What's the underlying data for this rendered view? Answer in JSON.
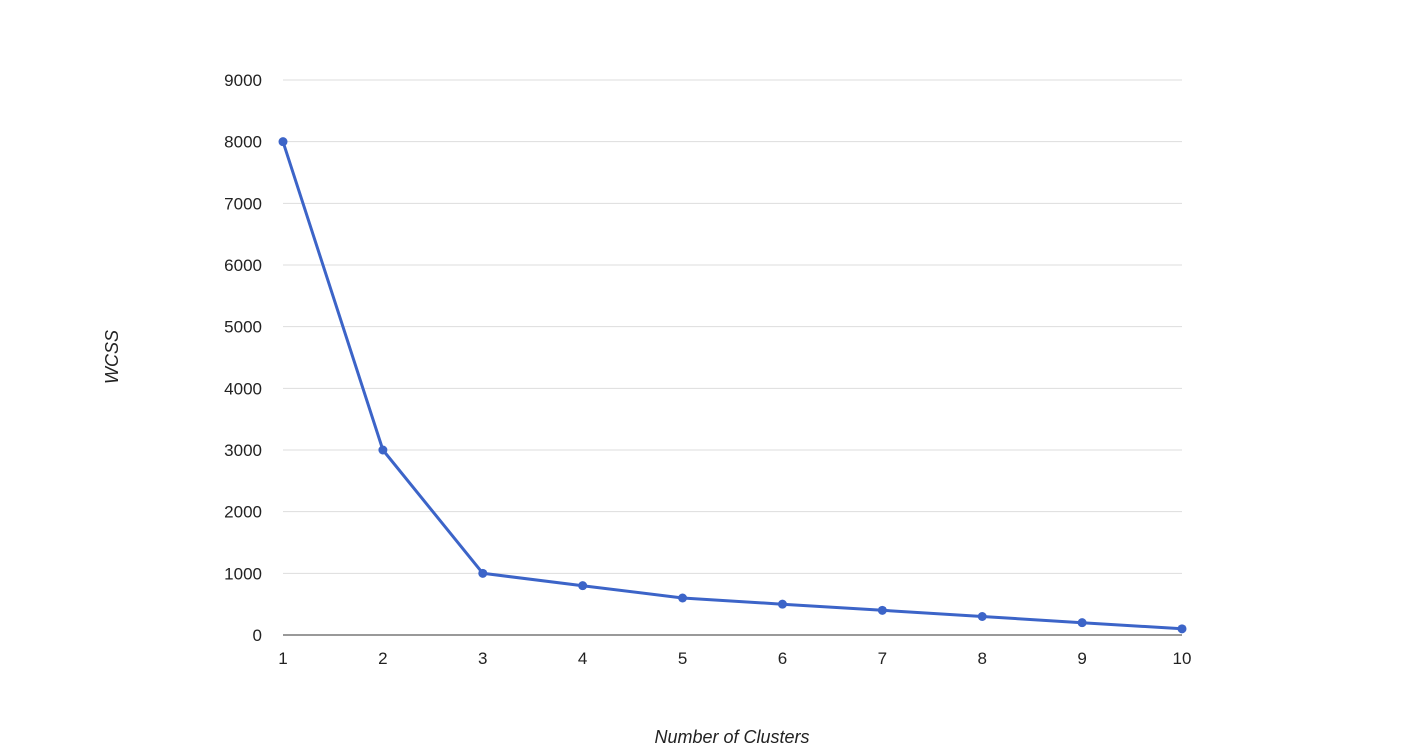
{
  "chart_data": {
    "type": "line",
    "title": "",
    "xlabel": "Number of Clusters",
    "ylabel": "WCSS",
    "x": [
      1,
      2,
      3,
      4,
      5,
      6,
      7,
      8,
      9,
      10
    ],
    "series": [
      {
        "values": [
          8000,
          3000,
          1000,
          800,
          600,
          500,
          400,
          300,
          200,
          100
        ],
        "color": "#3c64c8"
      }
    ],
    "ylim": [
      0,
      9000
    ],
    "yticks": [
      0,
      1000,
      2000,
      3000,
      4000,
      5000,
      6000,
      7000,
      8000,
      9000
    ],
    "xticks": [
      1,
      2,
      3,
      4,
      5,
      6,
      7,
      8,
      9,
      10
    ],
    "grid": true,
    "legend": "none",
    "gridline_color": "#dddddd",
    "axis_color": "#333333"
  }
}
